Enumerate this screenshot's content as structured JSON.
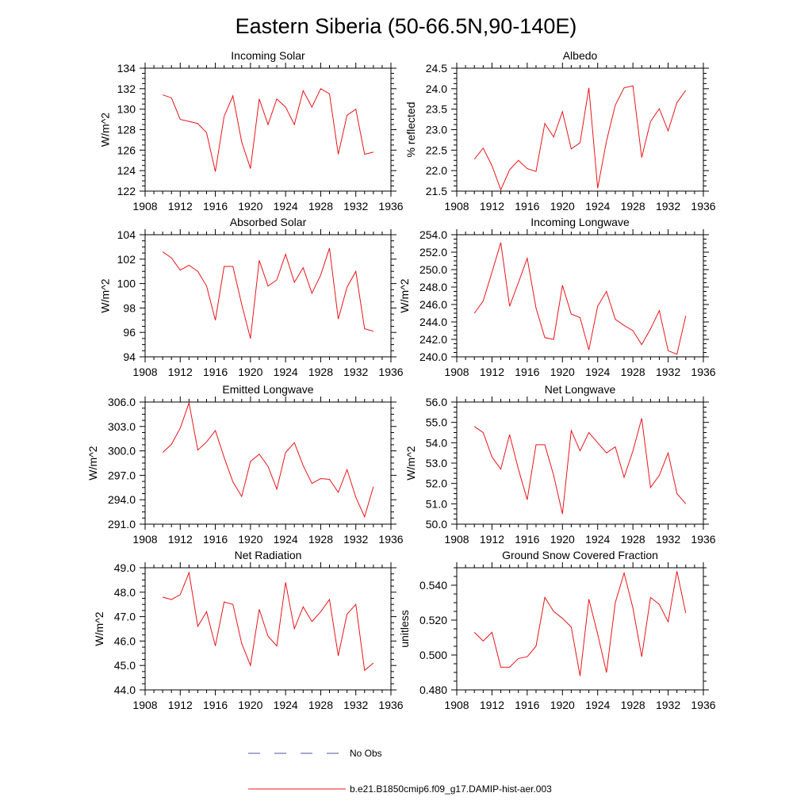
{
  "figure": {
    "title": "Eastern Siberia (50-66.5N,90-140E)",
    "line_color": "#e8151b",
    "noobs_color": "#4b53a6"
  },
  "legend": {
    "items": [
      {
        "label": "No Obs",
        "style": "dashed",
        "color": "#4b53a6"
      },
      {
        "label": "b.e21.B1850cmip6.f09_g17.DAMIP-hist-aer.003",
        "style": "solid",
        "color": "#e8151b"
      }
    ]
  },
  "chart_data": [
    {
      "type": "line",
      "title": "Incoming Solar",
      "xlabel": "",
      "ylabel": "W/m^2",
      "xlim": [
        1908,
        1936
      ],
      "ylim": [
        122,
        134
      ],
      "xticks": [
        "1908",
        "1912",
        "1916",
        "1920",
        "1924",
        "1928",
        "1932",
        "1936"
      ],
      "yticks": [
        "122",
        "124",
        "126",
        "128",
        "130",
        "132",
        "134"
      ],
      "x": [
        1910,
        1911,
        1912,
        1913,
        1914,
        1915,
        1916,
        1917,
        1918,
        1919,
        1920,
        1921,
        1922,
        1923,
        1924,
        1925,
        1926,
        1927,
        1928,
        1929,
        1930,
        1931,
        1932,
        1933,
        1934
      ],
      "series": [
        {
          "name": "b.e21.B1850cmip6.f09_g17.DAMIP-hist-aer.003",
          "values": [
            131.4,
            131.1,
            129.0,
            128.8,
            128.6,
            127.7,
            123.9,
            129.3,
            131.3,
            126.8,
            124.2,
            131.0,
            128.5,
            131.0,
            130.2,
            128.5,
            131.8,
            130.2,
            132.0,
            131.5,
            125.6,
            129.4,
            130.0,
            125.6,
            125.8
          ]
        }
      ]
    },
    {
      "type": "line",
      "title": "Albedo",
      "xlabel": "",
      "ylabel": "% reflected",
      "xlim": [
        1908,
        1936
      ],
      "ylim": [
        21.5,
        24.5
      ],
      "xticks": [
        "1908",
        "1912",
        "1916",
        "1920",
        "1924",
        "1928",
        "1932",
        "1936"
      ],
      "yticks": [
        "21.5",
        "22.0",
        "22.5",
        "23.0",
        "23.5",
        "24.0",
        "24.5"
      ],
      "x": [
        1910,
        1911,
        1912,
        1913,
        1914,
        1915,
        1916,
        1917,
        1918,
        1919,
        1920,
        1921,
        1922,
        1923,
        1924,
        1925,
        1926,
        1927,
        1928,
        1929,
        1930,
        1931,
        1932,
        1933,
        1934
      ],
      "series": [
        {
          "name": "b.e21.B1850cmip6.f09_g17.DAMIP-hist-aer.003",
          "values": [
            22.28,
            22.55,
            22.12,
            21.53,
            22.02,
            22.25,
            22.05,
            21.98,
            23.15,
            22.82,
            23.44,
            22.53,
            22.68,
            24.02,
            21.57,
            22.72,
            23.6,
            24.02,
            24.07,
            22.32,
            23.2,
            23.51,
            22.97,
            23.66,
            23.96
          ]
        }
      ]
    },
    {
      "type": "line",
      "title": "Absorbed Solar",
      "xlabel": "",
      "ylabel": "W/m^2",
      "xlim": [
        1908,
        1936
      ],
      "ylim": [
        94,
        104
      ],
      "xticks": [
        "1908",
        "1912",
        "1916",
        "1920",
        "1924",
        "1928",
        "1932",
        "1936"
      ],
      "yticks": [
        "94",
        "96",
        "98",
        "100",
        "102",
        "104"
      ],
      "x": [
        1910,
        1911,
        1912,
        1913,
        1914,
        1915,
        1916,
        1917,
        1918,
        1919,
        1920,
        1921,
        1922,
        1923,
        1924,
        1925,
        1926,
        1927,
        1928,
        1929,
        1930,
        1931,
        1932,
        1933,
        1934
      ],
      "series": [
        {
          "name": "b.e21.B1850cmip6.f09_g17.DAMIP-hist-aer.003",
          "values": [
            102.6,
            102.1,
            101.1,
            101.5,
            101.0,
            99.8,
            97.0,
            101.4,
            101.4,
            98.3,
            95.5,
            101.9,
            99.8,
            100.3,
            102.4,
            100.1,
            101.3,
            99.2,
            100.7,
            102.9,
            97.1,
            99.7,
            101.0,
            96.3,
            96.1
          ]
        }
      ]
    },
    {
      "type": "line",
      "title": "Incoming Longwave",
      "xlabel": "",
      "ylabel": "W/m^2",
      "xlim": [
        1908,
        1936
      ],
      "ylim": [
        240.0,
        254.0
      ],
      "xticks": [
        "1908",
        "1912",
        "1916",
        "1920",
        "1924",
        "1928",
        "1932",
        "1936"
      ],
      "yticks": [
        "240.0",
        "242.0",
        "244.0",
        "246.0",
        "248.0",
        "250.0",
        "252.0",
        "254.0"
      ],
      "x": [
        1910,
        1911,
        1912,
        1913,
        1914,
        1915,
        1916,
        1917,
        1918,
        1919,
        1920,
        1921,
        1922,
        1923,
        1924,
        1925,
        1926,
        1927,
        1928,
        1929,
        1930,
        1931,
        1932,
        1933,
        1934
      ],
      "series": [
        {
          "name": "b.e21.B1850cmip6.f09_g17.DAMIP-hist-aer.003",
          "values": [
            245.0,
            246.4,
            249.7,
            253.1,
            245.8,
            248.5,
            251.3,
            245.6,
            242.2,
            242.0,
            248.2,
            244.9,
            244.5,
            240.8,
            245.8,
            247.5,
            244.3,
            243.6,
            243.0,
            241.4,
            243.2,
            245.3,
            240.7,
            240.3,
            244.7
          ]
        }
      ]
    },
    {
      "type": "line",
      "title": "Emitted Longwave",
      "xlabel": "",
      "ylabel": "W/m^2",
      "xlim": [
        1908,
        1936
      ],
      "ylim": [
        291.0,
        306.0
      ],
      "xticks": [
        "1908",
        "1912",
        "1916",
        "1920",
        "1924",
        "1928",
        "1932",
        "1936"
      ],
      "yticks": [
        "291.0",
        "294.0",
        "297.0",
        "300.0",
        "303.0",
        "306.0"
      ],
      "x": [
        1910,
        1911,
        1912,
        1913,
        1914,
        1915,
        1916,
        1917,
        1918,
        1919,
        1920,
        1921,
        1922,
        1923,
        1924,
        1925,
        1926,
        1927,
        1928,
        1929,
        1930,
        1931,
        1932,
        1933,
        1934
      ],
      "series": [
        {
          "name": "b.e21.B1850cmip6.f09_g17.DAMIP-hist-aer.003",
          "values": [
            299.8,
            300.8,
            302.8,
            305.9,
            300.1,
            301.1,
            302.5,
            299.2,
            296.2,
            294.4,
            298.7,
            299.6,
            298.1,
            295.3,
            299.8,
            301.0,
            298.2,
            296.0,
            296.6,
            296.5,
            294.9,
            297.7,
            294.3,
            291.9,
            295.6
          ]
        }
      ]
    },
    {
      "type": "line",
      "title": "Net Longwave",
      "xlabel": "",
      "ylabel": "W/m^2",
      "xlim": [
        1908,
        1936
      ],
      "ylim": [
        50.0,
        56.0
      ],
      "xticks": [
        "1908",
        "1912",
        "1916",
        "1920",
        "1924",
        "1928",
        "1932",
        "1936"
      ],
      "yticks": [
        "50.0",
        "51.0",
        "52.0",
        "53.0",
        "54.0",
        "55.0",
        "56.0"
      ],
      "x": [
        1910,
        1911,
        1912,
        1913,
        1914,
        1915,
        1916,
        1917,
        1918,
        1919,
        1920,
        1921,
        1922,
        1923,
        1924,
        1925,
        1926,
        1927,
        1928,
        1929,
        1930,
        1931,
        1932,
        1933,
        1934
      ],
      "series": [
        {
          "name": "b.e21.B1850cmip6.f09_g17.DAMIP-hist-aer.003",
          "values": [
            54.8,
            54.5,
            53.3,
            52.7,
            54.4,
            52.7,
            51.2,
            53.9,
            53.9,
            52.4,
            50.5,
            54.6,
            53.6,
            54.5,
            54.0,
            53.5,
            53.8,
            52.3,
            53.6,
            55.2,
            51.8,
            52.4,
            53.5,
            51.5,
            51.0
          ]
        }
      ]
    },
    {
      "type": "line",
      "title": "Net Radiation",
      "xlabel": "",
      "ylabel": "W/m^2",
      "xlim": [
        1908,
        1936
      ],
      "ylim": [
        44.0,
        49.0
      ],
      "xticks": [
        "1908",
        "1912",
        "1916",
        "1920",
        "1924",
        "1928",
        "1932",
        "1936"
      ],
      "yticks": [
        "44.0",
        "45.0",
        "46.0",
        "47.0",
        "48.0",
        "49.0"
      ],
      "x": [
        1910,
        1911,
        1912,
        1913,
        1914,
        1915,
        1916,
        1917,
        1918,
        1919,
        1920,
        1921,
        1922,
        1923,
        1924,
        1925,
        1926,
        1927,
        1928,
        1929,
        1930,
        1931,
        1932,
        1933,
        1934
      ],
      "series": [
        {
          "name": "b.e21.B1850cmip6.f09_g17.DAMIP-hist-aer.003",
          "values": [
            47.8,
            47.7,
            47.9,
            48.8,
            46.6,
            47.2,
            45.8,
            47.6,
            47.5,
            45.9,
            45.0,
            47.3,
            46.2,
            45.8,
            48.4,
            46.5,
            47.4,
            46.8,
            47.2,
            47.7,
            45.4,
            47.1,
            47.5,
            44.8,
            45.1
          ]
        }
      ]
    },
    {
      "type": "line",
      "title": "Ground Snow Covered Fraction",
      "xlabel": "",
      "ylabel": "unitless",
      "xlim": [
        1908,
        1936
      ],
      "ylim": [
        0.48,
        0.55
      ],
      "xticks": [
        "1908",
        "1912",
        "1916",
        "1920",
        "1924",
        "1928",
        "1932",
        "1936"
      ],
      "yticks": [
        "0.480",
        "0.500",
        "0.520",
        "0.540"
      ],
      "ytick_values": [
        0.48,
        0.5,
        0.52,
        0.54
      ],
      "x": [
        1910,
        1911,
        1912,
        1913,
        1914,
        1915,
        1916,
        1917,
        1918,
        1919,
        1920,
        1921,
        1922,
        1923,
        1924,
        1925,
        1926,
        1927,
        1928,
        1929,
        1930,
        1931,
        1932,
        1933,
        1934
      ],
      "series": [
        {
          "name": "b.e21.B1850cmip6.f09_g17.DAMIP-hist-aer.003",
          "values": [
            0.513,
            0.508,
            0.513,
            0.493,
            0.493,
            0.498,
            0.499,
            0.505,
            0.533,
            0.525,
            0.521,
            0.516,
            0.488,
            0.532,
            0.512,
            0.49,
            0.53,
            0.547,
            0.527,
            0.499,
            0.533,
            0.529,
            0.519,
            0.548,
            0.524
          ]
        }
      ]
    }
  ]
}
